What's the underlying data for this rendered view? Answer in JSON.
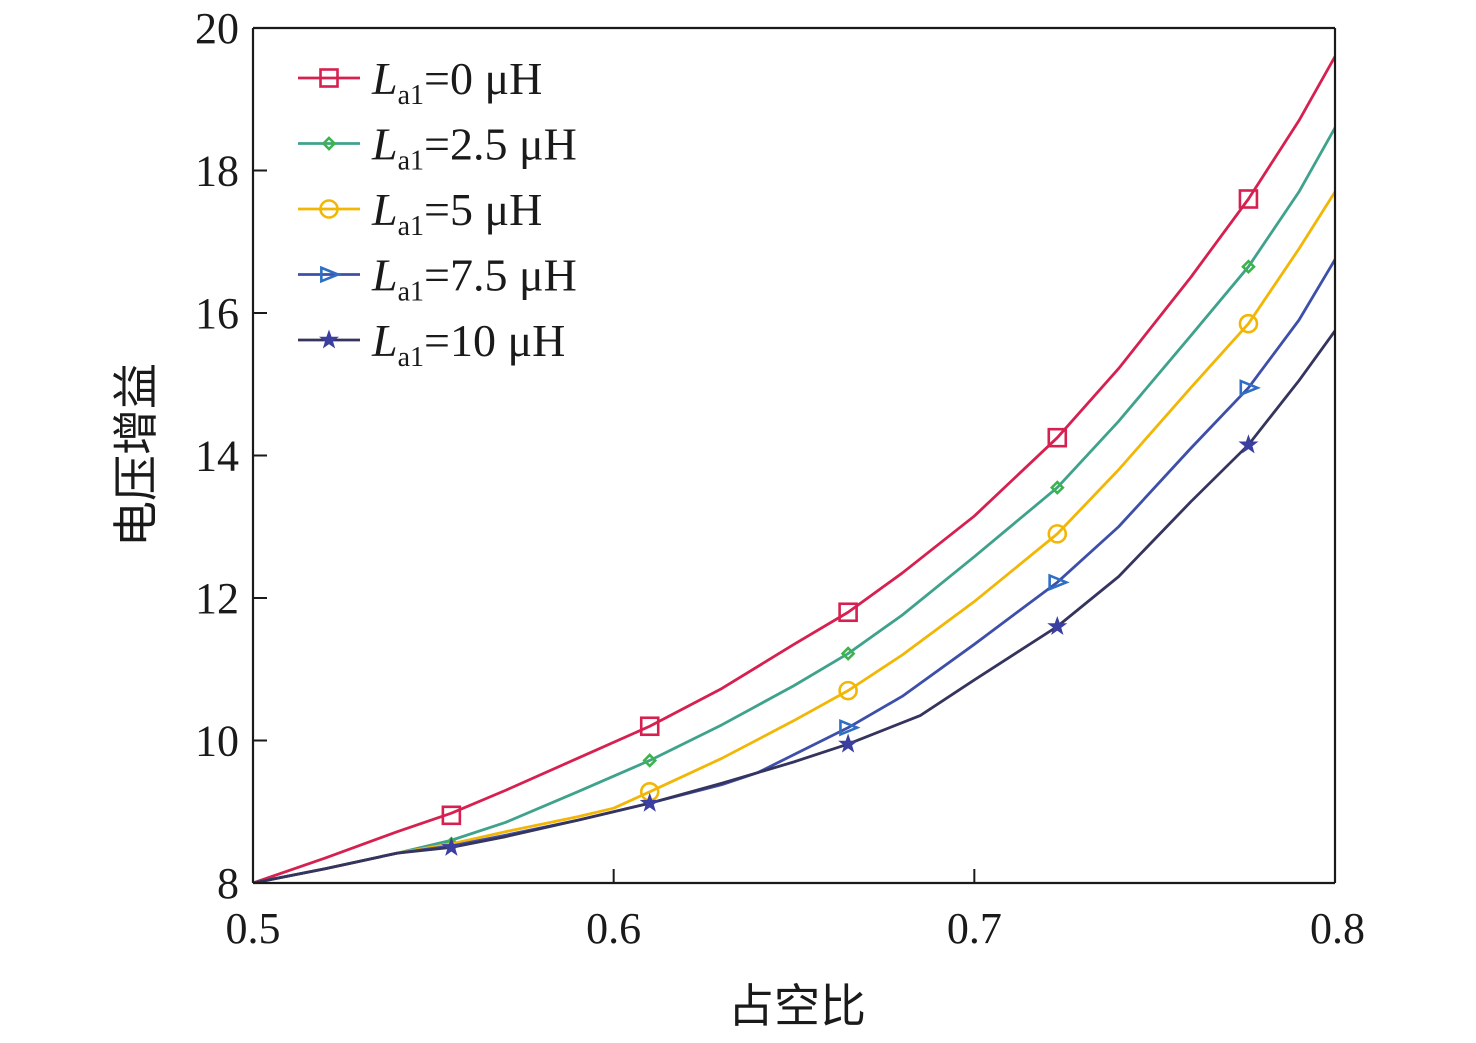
{
  "chart_data": {
    "type": "line",
    "title": "",
    "xlabel": "占空比",
    "ylabel": "电压增益",
    "xlim": [
      0.5,
      0.8
    ],
    "ylim": [
      8,
      20
    ],
    "xticks": [
      0.5,
      0.6,
      0.7,
      0.8
    ],
    "xtick_labels": [
      "0.5",
      "0.6",
      "0.7",
      "0.8"
    ],
    "yticks": [
      8,
      10,
      12,
      14,
      16,
      18,
      20
    ],
    "ytick_labels": [
      "8",
      "10",
      "12",
      "14",
      "16",
      "18",
      "20"
    ],
    "grid": false,
    "legend_position": "top-left",
    "series": [
      {
        "name": "La1=0 μH",
        "legend_symbol": "L",
        "legend_sub": "a1",
        "legend_rest": "=0 μH",
        "color": "#d6204f",
        "marker": "square",
        "curve_x": [
          0.5,
          0.52,
          0.54,
          0.555,
          0.57,
          0.59,
          0.61,
          0.63,
          0.65,
          0.665,
          0.68,
          0.7,
          0.723,
          0.74,
          0.76,
          0.776,
          0.79,
          0.8
        ],
        "curve_y": [
          8.0,
          8.35,
          8.72,
          8.98,
          9.3,
          9.75,
          10.2,
          10.73,
          11.35,
          11.8,
          12.35,
          13.15,
          14.25,
          15.22,
          16.5,
          17.6,
          18.7,
          19.6
        ],
        "markers_x": [
          0.555,
          0.61,
          0.665,
          0.723,
          0.776
        ],
        "markers_y": [
          8.95,
          10.2,
          11.8,
          14.25,
          17.6
        ]
      },
      {
        "name": "La1=2.5 μH",
        "legend_symbol": "L",
        "legend_sub": "a1",
        "legend_rest": "=2.5 μH",
        "color": "#3fa28c",
        "marker_color": "#3cb44b",
        "marker": "diamond",
        "curve_x": [
          0.5,
          0.52,
          0.54,
          0.555,
          0.57,
          0.59,
          0.61,
          0.63,
          0.65,
          0.665,
          0.68,
          0.7,
          0.723,
          0.74,
          0.76,
          0.776,
          0.79,
          0.8
        ],
        "curve_y": [
          8.0,
          8.2,
          8.42,
          8.6,
          8.85,
          9.28,
          9.72,
          10.22,
          10.77,
          11.22,
          11.76,
          12.58,
          13.55,
          14.48,
          15.68,
          16.65,
          17.7,
          18.6
        ],
        "markers_x": [
          0.555,
          0.61,
          0.665,
          0.723,
          0.776
        ],
        "markers_y": [
          8.55,
          9.72,
          11.22,
          13.55,
          16.65
        ]
      },
      {
        "name": "La1=5 μH",
        "legend_symbol": "L",
        "legend_sub": "a1",
        "legend_rest": "=5 μH",
        "color": "#f2b705",
        "marker": "circle",
        "curve_x": [
          0.5,
          0.52,
          0.54,
          0.555,
          0.57,
          0.59,
          0.6,
          0.61,
          0.63,
          0.65,
          0.665,
          0.68,
          0.7,
          0.723,
          0.74,
          0.76,
          0.776,
          0.79,
          0.8
        ],
        "curve_y": [
          8.0,
          8.2,
          8.42,
          8.55,
          8.72,
          8.93,
          9.05,
          9.28,
          9.75,
          10.28,
          10.7,
          11.2,
          11.95,
          12.9,
          13.8,
          14.95,
          15.85,
          16.9,
          17.7
        ],
        "markers_x": [
          0.61,
          0.665,
          0.723,
          0.776
        ],
        "markers_y": [
          9.28,
          10.7,
          12.9,
          15.85
        ]
      },
      {
        "name": "La1=7.5 μH",
        "legend_symbol": "L",
        "legend_sub": "a1",
        "legend_rest": "=7.5 μH",
        "color": "#3d4fa8",
        "marker_color": "#2e6fc4",
        "marker": "triangle",
        "curve_x": [
          0.5,
          0.52,
          0.54,
          0.555,
          0.57,
          0.59,
          0.61,
          0.63,
          0.64,
          0.665,
          0.68,
          0.7,
          0.723,
          0.74,
          0.76,
          0.776,
          0.79,
          0.8
        ],
        "curve_y": [
          8.0,
          8.2,
          8.42,
          8.52,
          8.67,
          8.88,
          9.12,
          9.38,
          9.55,
          10.18,
          10.62,
          11.35,
          12.22,
          13.0,
          14.1,
          14.95,
          15.9,
          16.75
        ],
        "markers_x": [
          0.665,
          0.723,
          0.776
        ],
        "markers_y": [
          10.18,
          12.22,
          14.95
        ]
      },
      {
        "name": "La1=10 μH",
        "legend_symbol": "L",
        "legend_sub": "a1",
        "legend_rest": "=10 μH",
        "color": "#34345e",
        "marker_color": "#3a3fa0",
        "marker": "star",
        "curve_x": [
          0.5,
          0.52,
          0.54,
          0.555,
          0.57,
          0.59,
          0.61,
          0.63,
          0.65,
          0.665,
          0.685,
          0.7,
          0.723,
          0.74,
          0.76,
          0.776,
          0.79,
          0.8
        ],
        "curve_y": [
          8.0,
          8.2,
          8.42,
          8.5,
          8.65,
          8.88,
          9.12,
          9.4,
          9.7,
          9.95,
          10.35,
          10.85,
          11.6,
          12.3,
          13.35,
          14.15,
          15.05,
          15.75
        ],
        "markers_x": [
          0.555,
          0.61,
          0.665,
          0.723,
          0.776
        ],
        "markers_y": [
          8.5,
          9.12,
          9.95,
          11.6,
          14.15
        ]
      }
    ]
  }
}
